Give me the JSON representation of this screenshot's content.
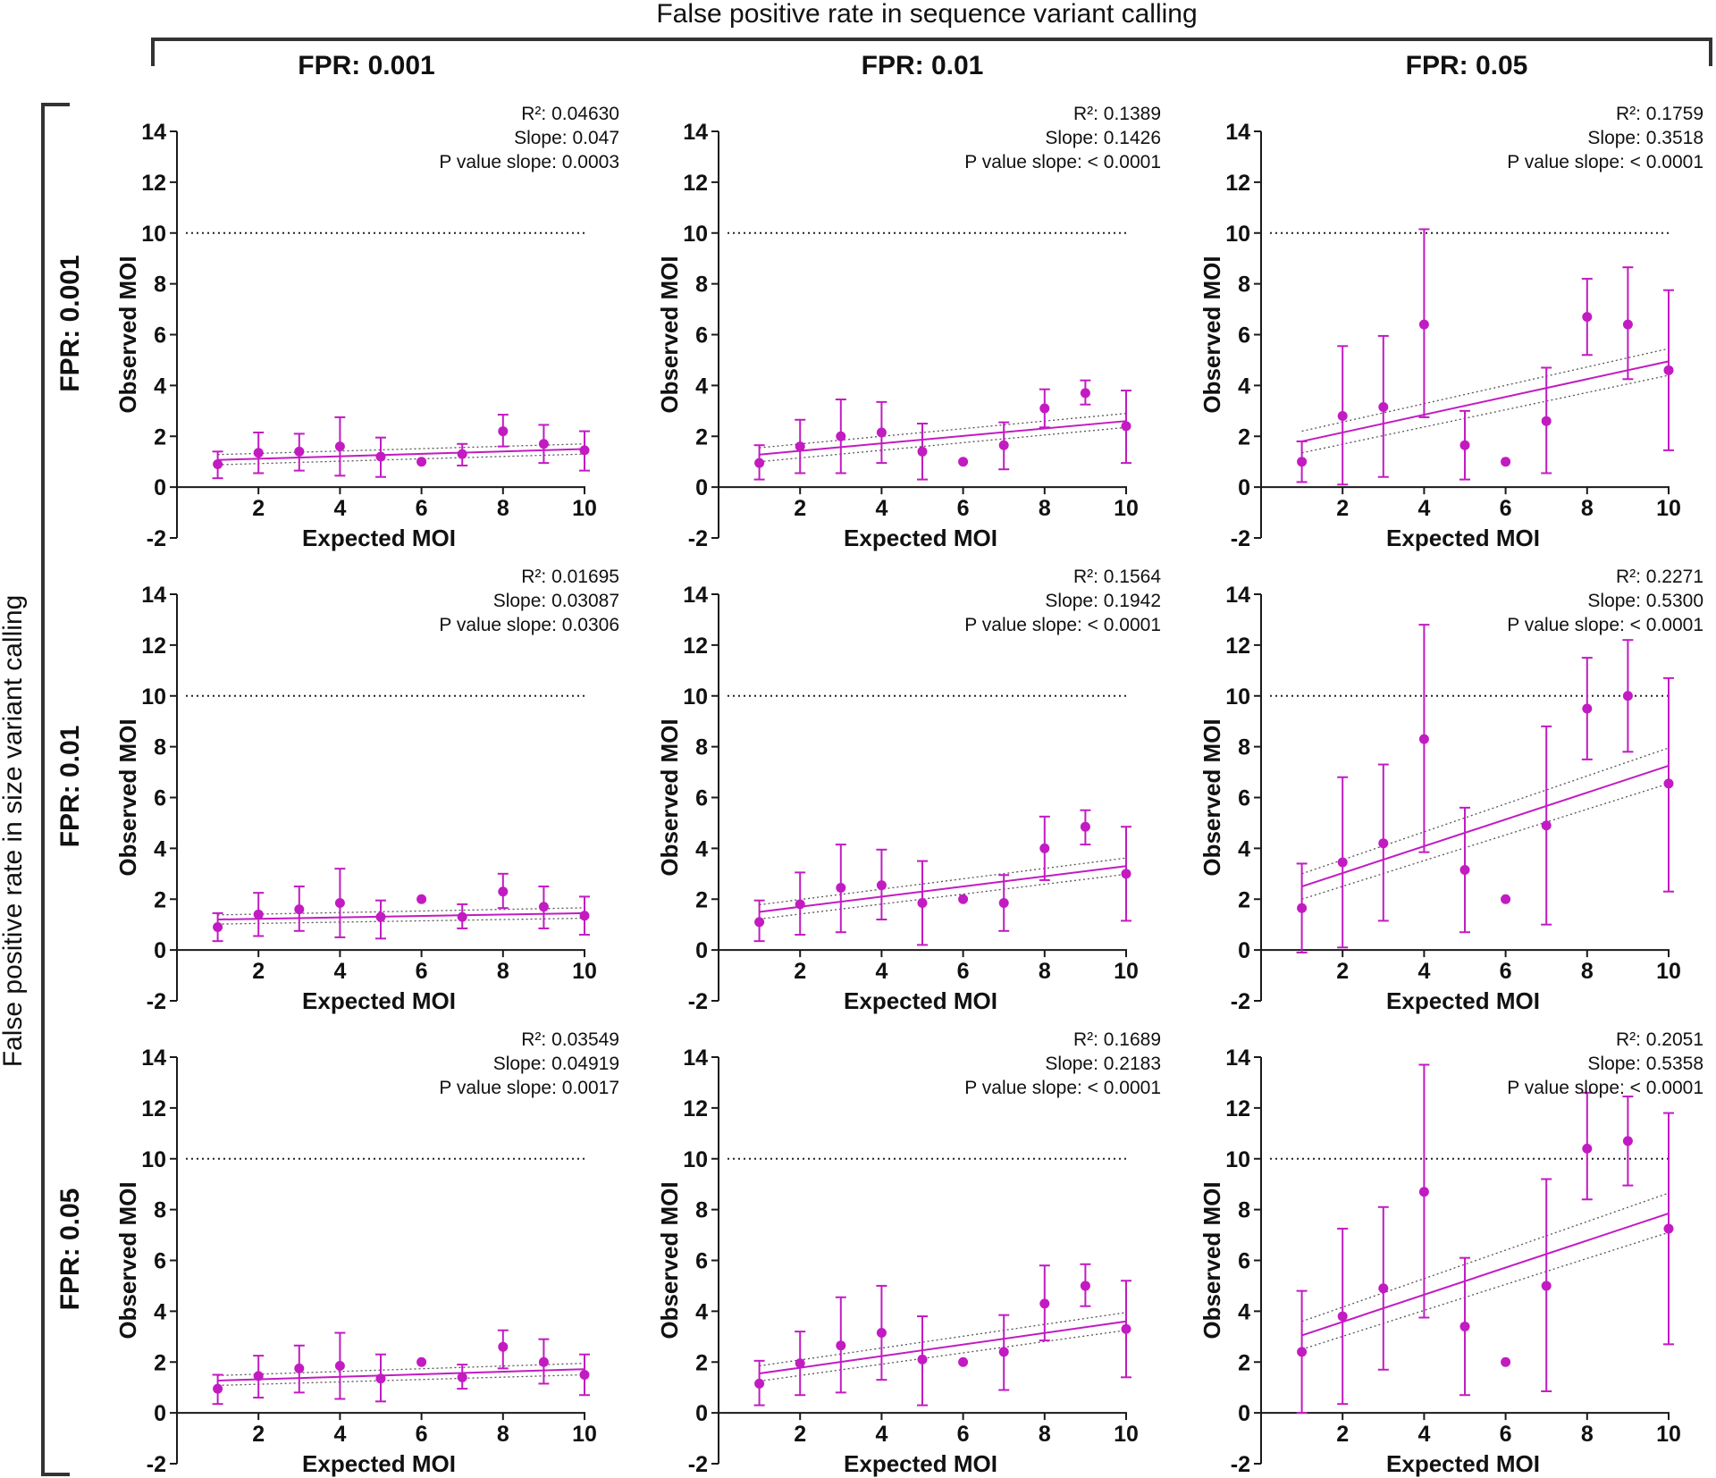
{
  "figure": {
    "top_title": "False positive rate in sequence variant calling",
    "left_title": "False positive rate in size variant calling",
    "column_headers": [
      "FPR: 0.001",
      "FPR: 0.01",
      "FPR: 0.05"
    ],
    "row_headers": [
      "FPR: 0.001",
      "FPR: 0.01",
      "FPR: 0.05"
    ],
    "colors": {
      "data": "#c21bc2",
      "fit_line": "#c21bc2",
      "ci_lines": "#555555",
      "reference_line": "#222222",
      "axis": "#1a1a1a"
    }
  },
  "chart_data": [
    {
      "type": "scatter",
      "row": "FPR: 0.001",
      "col": "FPR: 0.001",
      "xlabel": "Expected MOI",
      "ylabel": "Observed MOI",
      "xlim": [
        0,
        10
      ],
      "ylim": [
        -2,
        14
      ],
      "xticks": [
        "2",
        "4",
        "6",
        "8",
        "10"
      ],
      "yticks": [
        "-2",
        "0",
        "2",
        "4",
        "6",
        "8",
        "10",
        "12",
        "14"
      ],
      "reference_line_y": 10,
      "x": [
        1,
        2,
        3,
        4,
        5,
        6,
        7,
        8,
        9,
        10
      ],
      "y": [
        0.9,
        1.35,
        1.4,
        1.6,
        1.2,
        1.0,
        1.3,
        2.2,
        1.7,
        1.45
      ],
      "err_low": [
        0.35,
        0.55,
        0.65,
        0.45,
        0.4,
        1.0,
        0.85,
        1.6,
        0.95,
        0.65
      ],
      "err_high": [
        1.4,
        2.15,
        2.1,
        2.75,
        1.95,
        1.0,
        1.7,
        2.85,
        2.45,
        2.2
      ],
      "fit": {
        "x0": 1,
        "y0": 1.07,
        "x1": 10,
        "y1": 1.5
      },
      "ci_upper": {
        "x0": 1,
        "y0": 1.28,
        "x1": 10,
        "y1": 1.7
      },
      "ci_lower": {
        "x0": 1,
        "y0": 0.88,
        "x1": 10,
        "y1": 1.3
      },
      "stats": {
        "r2_label": "R²: 0.04630",
        "slope_label": "Slope: 0.047",
        "p_label": "P value slope: 0.0003"
      }
    },
    {
      "type": "scatter",
      "row": "FPR: 0.001",
      "col": "FPR: 0.01",
      "xlabel": "Expected MOI",
      "ylabel": "Observed MOI",
      "xlim": [
        0,
        10
      ],
      "ylim": [
        -2,
        14
      ],
      "xticks": [
        "2",
        "4",
        "6",
        "8",
        "10"
      ],
      "yticks": [
        "-2",
        "0",
        "2",
        "4",
        "6",
        "8",
        "10",
        "12",
        "14"
      ],
      "reference_line_y": 10,
      "x": [
        1,
        2,
        3,
        4,
        5,
        6,
        7,
        8,
        9,
        10
      ],
      "y": [
        0.95,
        1.6,
        2.0,
        2.15,
        1.4,
        1.0,
        1.65,
        3.1,
        3.7,
        2.4
      ],
      "err_low": [
        0.3,
        0.55,
        0.55,
        0.95,
        0.3,
        1.0,
        0.7,
        2.35,
        3.25,
        0.95
      ],
      "err_high": [
        1.65,
        2.65,
        3.45,
        3.35,
        2.5,
        1.0,
        2.55,
        3.85,
        4.2,
        3.8
      ],
      "fit": {
        "x0": 1,
        "y0": 1.28,
        "x1": 10,
        "y1": 2.6
      },
      "ci_upper": {
        "x0": 1,
        "y0": 1.55,
        "x1": 10,
        "y1": 2.9
      },
      "ci_lower": {
        "x0": 1,
        "y0": 1.0,
        "x1": 10,
        "y1": 2.35
      },
      "stats": {
        "r2_label": "R²: 0.1389",
        "slope_label": "Slope: 0.1426",
        "p_label": "P value slope: < 0.0001"
      }
    },
    {
      "type": "scatter",
      "row": "FPR: 0.001",
      "col": "FPR: 0.05",
      "xlabel": "Expected MOI",
      "ylabel": "Observed MOI",
      "xlim": [
        0,
        10
      ],
      "ylim": [
        -2,
        14
      ],
      "xticks": [
        "2",
        "4",
        "6",
        "8",
        "10"
      ],
      "yticks": [
        "-2",
        "0",
        "2",
        "4",
        "6",
        "8",
        "10",
        "12",
        "14"
      ],
      "reference_line_y": 10,
      "x": [
        1,
        2,
        3,
        4,
        5,
        6,
        7,
        8,
        9,
        10
      ],
      "y": [
        1.0,
        2.8,
        3.15,
        6.4,
        1.65,
        1.0,
        2.6,
        6.7,
        6.4,
        4.6
      ],
      "err_low": [
        0.2,
        0.1,
        0.4,
        2.75,
        0.3,
        1.0,
        0.55,
        5.2,
        4.25,
        1.45
      ],
      "err_high": [
        1.8,
        5.55,
        5.95,
        10.15,
        3.0,
        1.0,
        4.7,
        8.2,
        8.65,
        7.75
      ],
      "fit": {
        "x0": 1,
        "y0": 1.8,
        "x1": 10,
        "y1": 4.95
      },
      "ci_upper": {
        "x0": 1,
        "y0": 2.2,
        "x1": 10,
        "y1": 5.45
      },
      "ci_lower": {
        "x0": 1,
        "y0": 1.35,
        "x1": 10,
        "y1": 4.4
      },
      "stats": {
        "r2_label": "R²: 0.1759",
        "slope_label": "Slope: 0.3518",
        "p_label": "P value slope: < 0.0001"
      }
    },
    {
      "type": "scatter",
      "row": "FPR: 0.01",
      "col": "FPR: 0.001",
      "xlabel": "Expected MOI",
      "ylabel": "Observed MOI",
      "xlim": [
        0,
        10
      ],
      "ylim": [
        -2,
        14
      ],
      "xticks": [
        "2",
        "4",
        "6",
        "8",
        "10"
      ],
      "yticks": [
        "-2",
        "0",
        "2",
        "4",
        "6",
        "8",
        "10",
        "12",
        "14"
      ],
      "reference_line_y": 10,
      "x": [
        1,
        2,
        3,
        4,
        5,
        6,
        7,
        8,
        9,
        10
      ],
      "y": [
        0.9,
        1.4,
        1.6,
        1.85,
        1.3,
        2.0,
        1.3,
        2.3,
        1.7,
        1.35
      ],
      "err_low": [
        0.35,
        0.55,
        0.75,
        0.5,
        0.45,
        2.0,
        0.85,
        1.65,
        0.85,
        0.6
      ],
      "err_high": [
        1.45,
        2.25,
        2.5,
        3.2,
        1.95,
        2.0,
        1.8,
        3.0,
        2.5,
        2.1
      ],
      "fit": {
        "x0": 1,
        "y0": 1.2,
        "x1": 10,
        "y1": 1.45
      },
      "ci_upper": {
        "x0": 1,
        "y0": 1.38,
        "x1": 10,
        "y1": 1.66
      },
      "ci_lower": {
        "x0": 1,
        "y0": 1.02,
        "x1": 10,
        "y1": 1.25
      },
      "stats": {
        "r2_label": "R²: 0.01695",
        "slope_label": "Slope: 0.03087",
        "p_label": "P value slope: 0.0306"
      }
    },
    {
      "type": "scatter",
      "row": "FPR: 0.01",
      "col": "FPR: 0.01",
      "xlabel": "Expected MOI",
      "ylabel": "Observed MOI",
      "xlim": [
        0,
        10
      ],
      "ylim": [
        -2,
        14
      ],
      "xticks": [
        "2",
        "4",
        "6",
        "8",
        "10"
      ],
      "yticks": [
        "-2",
        "0",
        "2",
        "4",
        "6",
        "8",
        "10",
        "12",
        "14"
      ],
      "reference_line_y": 10,
      "x": [
        1,
        2,
        3,
        4,
        5,
        6,
        7,
        8,
        9,
        10
      ],
      "y": [
        1.1,
        1.8,
        2.45,
        2.55,
        1.85,
        2.0,
        1.85,
        4.0,
        4.85,
        3.0
      ],
      "err_low": [
        0.35,
        0.6,
        0.7,
        1.2,
        0.2,
        2.0,
        0.75,
        2.75,
        4.15,
        1.15
      ],
      "err_high": [
        1.95,
        3.05,
        4.15,
        3.95,
        3.5,
        2.0,
        2.95,
        5.25,
        5.5,
        4.85
      ],
      "fit": {
        "x0": 1,
        "y0": 1.5,
        "x1": 10,
        "y1": 3.3
      },
      "ci_upper": {
        "x0": 1,
        "y0": 1.78,
        "x1": 10,
        "y1": 3.62
      },
      "ci_lower": {
        "x0": 1,
        "y0": 1.22,
        "x1": 10,
        "y1": 2.98
      },
      "stats": {
        "r2_label": "R²: 0.1564",
        "slope_label": "Slope: 0.1942",
        "p_label": "P value slope: < 0.0001"
      }
    },
    {
      "type": "scatter",
      "row": "FPR: 0.01",
      "col": "FPR: 0.05",
      "xlabel": "Expected MOI",
      "ylabel": "Observed MOI",
      "xlim": [
        0,
        10
      ],
      "ylim": [
        -2,
        14
      ],
      "xticks": [
        "2",
        "4",
        "6",
        "8",
        "10"
      ],
      "yticks": [
        "-2",
        "0",
        "2",
        "4",
        "6",
        "8",
        "10",
        "12",
        "14"
      ],
      "reference_line_y": 10,
      "x": [
        1,
        2,
        3,
        4,
        5,
        6,
        7,
        8,
        9,
        10
      ],
      "y": [
        1.65,
        3.45,
        4.2,
        8.3,
        3.15,
        2.0,
        4.9,
        9.5,
        10.0,
        6.55
      ],
      "err_low": [
        -0.1,
        0.1,
        1.15,
        3.85,
        0.7,
        2.0,
        1.0,
        7.5,
        7.8,
        2.3
      ],
      "err_high": [
        3.4,
        6.8,
        7.3,
        12.8,
        5.6,
        2.0,
        8.8,
        11.5,
        12.2,
        10.7
      ],
      "fit": {
        "x0": 1,
        "y0": 2.5,
        "x1": 10,
        "y1": 7.25
      },
      "ci_upper": {
        "x0": 1,
        "y0": 3.0,
        "x1": 10,
        "y1": 7.95
      },
      "ci_lower": {
        "x0": 1,
        "y0": 2.0,
        "x1": 10,
        "y1": 6.55
      },
      "stats": {
        "r2_label": "R²: 0.2271",
        "slope_label": "Slope: 0.5300",
        "p_label": "P value slope: < 0.0001"
      }
    },
    {
      "type": "scatter",
      "row": "FPR: 0.05",
      "col": "FPR: 0.001",
      "xlabel": "Expected MOI",
      "ylabel": "Observed MOI",
      "xlim": [
        0,
        10
      ],
      "ylim": [
        -2,
        14
      ],
      "xticks": [
        "2",
        "4",
        "6",
        "8",
        "10"
      ],
      "yticks": [
        "-2",
        "0",
        "2",
        "4",
        "6",
        "8",
        "10",
        "12",
        "14"
      ],
      "reference_line_y": 10,
      "x": [
        1,
        2,
        3,
        4,
        5,
        6,
        7,
        8,
        9,
        10
      ],
      "y": [
        0.95,
        1.45,
        1.75,
        1.85,
        1.35,
        2.0,
        1.4,
        2.6,
        2.0,
        1.5
      ],
      "err_low": [
        0.35,
        0.6,
        0.8,
        0.55,
        0.45,
        2.0,
        0.95,
        1.75,
        1.15,
        0.7
      ],
      "err_high": [
        1.5,
        2.25,
        2.65,
        3.15,
        2.3,
        2.0,
        1.9,
        3.25,
        2.9,
        2.3
      ],
      "fit": {
        "x0": 1,
        "y0": 1.27,
        "x1": 10,
        "y1": 1.72
      },
      "ci_upper": {
        "x0": 1,
        "y0": 1.47,
        "x1": 10,
        "y1": 1.95
      },
      "ci_lower": {
        "x0": 1,
        "y0": 1.08,
        "x1": 10,
        "y1": 1.5
      },
      "stats": {
        "r2_label": "R²: 0.03549",
        "slope_label": "Slope: 0.04919",
        "p_label": "P value slope: 0.0017"
      }
    },
    {
      "type": "scatter",
      "row": "FPR: 0.05",
      "col": "FPR: 0.01",
      "xlabel": "Expected MOI",
      "ylabel": "Observed MOI",
      "xlim": [
        0,
        10
      ],
      "ylim": [
        -2,
        14
      ],
      "xticks": [
        "2",
        "4",
        "6",
        "8",
        "10"
      ],
      "yticks": [
        "-2",
        "0",
        "2",
        "4",
        "6",
        "8",
        "10",
        "12",
        "14"
      ],
      "reference_line_y": 10,
      "x": [
        1,
        2,
        3,
        4,
        5,
        6,
        7,
        8,
        9,
        10
      ],
      "y": [
        1.15,
        1.95,
        2.65,
        3.15,
        2.1,
        2.0,
        2.4,
        4.3,
        5.0,
        3.3
      ],
      "err_low": [
        0.3,
        0.7,
        0.8,
        1.3,
        0.3,
        2.0,
        0.9,
        2.85,
        4.2,
        1.4
      ],
      "err_high": [
        2.05,
        3.2,
        4.55,
        5.0,
        3.8,
        2.0,
        3.85,
        5.8,
        5.85,
        5.2
      ],
      "fit": {
        "x0": 1,
        "y0": 1.55,
        "x1": 10,
        "y1": 3.6
      },
      "ci_upper": {
        "x0": 1,
        "y0": 1.85,
        "x1": 10,
        "y1": 3.95
      },
      "ci_lower": {
        "x0": 1,
        "y0": 1.25,
        "x1": 10,
        "y1": 3.25
      },
      "stats": {
        "r2_label": "R²: 0.1689",
        "slope_label": "Slope: 0.2183",
        "p_label": "P value slope: < 0.0001"
      }
    },
    {
      "type": "scatter",
      "row": "FPR: 0.05",
      "col": "FPR: 0.05",
      "xlabel": "Expected MOI",
      "ylabel": "Observed MOI",
      "xlim": [
        0,
        10
      ],
      "ylim": [
        -2,
        14
      ],
      "xticks": [
        "2",
        "4",
        "6",
        "8",
        "10"
      ],
      "yticks": [
        "-2",
        "0",
        "2",
        "4",
        "6",
        "8",
        "10",
        "12",
        "14"
      ],
      "reference_line_y": 10,
      "x": [
        1,
        2,
        3,
        4,
        5,
        6,
        7,
        8,
        9,
        10
      ],
      "y": [
        2.4,
        3.8,
        4.9,
        8.7,
        3.4,
        2.0,
        5.0,
        10.4,
        10.7,
        7.25
      ],
      "err_low": [
        0.0,
        0.35,
        1.7,
        3.75,
        0.7,
        2.0,
        0.85,
        8.4,
        8.95,
        2.7
      ],
      "err_high": [
        4.8,
        7.25,
        8.1,
        13.7,
        6.1,
        2.0,
        9.2,
        12.6,
        12.45,
        11.8
      ],
      "fit": {
        "x0": 1,
        "y0": 3.05,
        "x1": 10,
        "y1": 7.85
      },
      "ci_upper": {
        "x0": 1,
        "y0": 3.6,
        "x1": 10,
        "y1": 8.65
      },
      "ci_lower": {
        "x0": 1,
        "y0": 2.5,
        "x1": 10,
        "y1": 7.1
      },
      "stats": {
        "r2_label": "R²: 0.2051",
        "slope_label": "Slope: 0.5358",
        "p_label": "P value slope: < 0.0001"
      }
    }
  ]
}
